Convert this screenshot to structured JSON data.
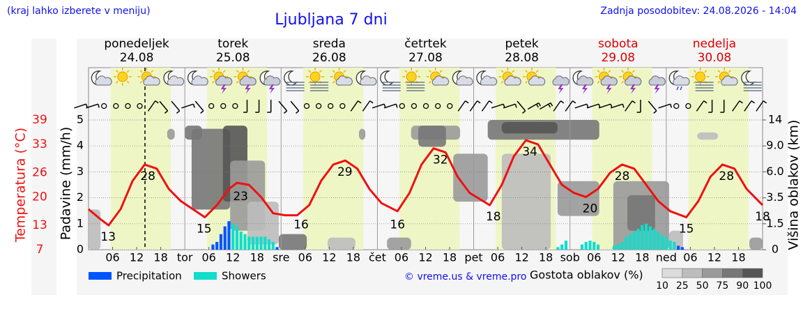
{
  "header": {
    "note": "(kraj lahko izberete v meniju)",
    "title": "Ljubljana 7 dni",
    "updated": "Zadnja posodobitev: 24.08.2026 - 14:04"
  },
  "chart_data": {
    "type": "meteogram",
    "days": [
      {
        "name": "ponedeljek",
        "date": "24.08",
        "color": "#000000"
      },
      {
        "name": "torek",
        "date": "25.08",
        "color": "#000000"
      },
      {
        "name": "sreda",
        "date": "26.08",
        "color": "#000000"
      },
      {
        "name": "četrtek",
        "date": "27.08",
        "color": "#000000"
      },
      {
        "name": "petek",
        "date": "28.08",
        "color": "#000000"
      },
      {
        "name": "sobota",
        "date": "29.08",
        "color": "#dd0000"
      },
      {
        "name": "nedelja",
        "date": "30.08",
        "color": "#dd0000"
      }
    ],
    "xlim": [
      0,
      168
    ],
    "xticks": [
      {
        "value": 6,
        "label": "06"
      },
      {
        "value": 12,
        "label": "12"
      },
      {
        "value": 18,
        "label": "18"
      },
      {
        "value": 24,
        "label": "tor"
      },
      {
        "value": 30,
        "label": "06"
      },
      {
        "value": 36,
        "label": "12"
      },
      {
        "value": 42,
        "label": "18"
      },
      {
        "value": 48,
        "label": "sre"
      },
      {
        "value": 54,
        "label": "06"
      },
      {
        "value": 60,
        "label": "12"
      },
      {
        "value": 66,
        "label": "18"
      },
      {
        "value": 72,
        "label": "čet"
      },
      {
        "value": 78,
        "label": "06"
      },
      {
        "value": 84,
        "label": "12"
      },
      {
        "value": 90,
        "label": "18"
      },
      {
        "value": 96,
        "label": "pet"
      },
      {
        "value": 102,
        "label": "06"
      },
      {
        "value": 108,
        "label": "12"
      },
      {
        "value": 114,
        "label": "18"
      },
      {
        "value": 120,
        "label": "sob"
      },
      {
        "value": 126,
        "label": "06"
      },
      {
        "value": 132,
        "label": "12"
      },
      {
        "value": 138,
        "label": "18"
      },
      {
        "value": 144,
        "label": "ned"
      },
      {
        "value": 150,
        "label": "06"
      },
      {
        "value": 156,
        "label": "12"
      },
      {
        "value": 162,
        "label": "18"
      }
    ],
    "daylight": [
      5.5,
      20.5
    ],
    "now": 14.07,
    "ylabel": "Padavine (mm/h)",
    "ylim": [
      0,
      5
    ],
    "yticks": [
      0,
      1,
      2,
      3,
      4,
      5
    ],
    "grid": true,
    "y2label": "Višina oblakov (km)",
    "y2lim": [
      0,
      14
    ],
    "y2ticks": [
      0,
      1.5,
      3.5,
      {
        "value": 6,
        "label": "6.0"
      },
      {
        "value": 9,
        "label": "9.0"
      },
      14
    ],
    "temperature": {
      "label": "Temperatura (°C)",
      "color": "#ee1111",
      "lim": [
        7,
        39
      ],
      "ticks": [
        7,
        13,
        20,
        26,
        33,
        39
      ],
      "x": [
        0,
        3,
        5,
        8,
        11,
        14,
        17,
        20,
        23,
        26,
        29,
        32,
        35,
        37,
        40,
        43,
        46,
        49,
        52,
        55,
        58,
        61,
        64,
        67,
        70,
        73,
        77,
        80,
        83,
        86,
        89,
        92,
        95,
        100,
        103,
        106,
        109,
        112,
        115,
        118,
        121,
        124,
        127,
        130,
        133,
        136,
        139,
        142,
        145,
        149,
        152,
        155,
        158,
        161,
        164,
        168
      ],
      "values": [
        17,
        14.5,
        13,
        17,
        24,
        28,
        27,
        22,
        19,
        17,
        15,
        18,
        22,
        23.5,
        23,
        20,
        16,
        15.5,
        15.5,
        18,
        24,
        28,
        29,
        27,
        22,
        18.5,
        16.5,
        21,
        28,
        32,
        31,
        25,
        21,
        18,
        23,
        30,
        34,
        33,
        28,
        23,
        21,
        20,
        22,
        26,
        28,
        27,
        23,
        19,
        16.5,
        15,
        19,
        25,
        28,
        27,
        22,
        18
      ],
      "extremes": {
        "x": [
          4.9,
          14.8,
          28.8,
          37.9,
          53,
          63.9,
          77,
          87.7,
          100.9,
          110,
          125,
          133,
          149,
          159,
          168
        ],
        "values": [
          13,
          28,
          15,
          23,
          16,
          29,
          16,
          32,
          18,
          34,
          20,
          28,
          15,
          28,
          18
        ]
      }
    },
    "series": [
      {
        "name": "Precipitation",
        "color": "#0055ff",
        "x": [
          31,
          32,
          33,
          34,
          35,
          47,
          147,
          148
        ],
        "values": [
          0.2,
          0.3,
          0.6,
          0.9,
          1.1,
          0.1,
          0.15,
          0.1
        ]
      },
      {
        "name": "Showers",
        "color": "#11ddcc",
        "x": [
          36,
          37,
          38,
          39,
          40,
          41,
          42,
          43,
          44,
          45,
          46,
          117,
          118,
          119,
          123,
          124,
          125,
          126,
          127,
          131,
          132,
          133,
          134,
          135,
          136,
          137,
          138,
          139,
          140,
          141,
          142,
          143,
          144,
          145,
          146
        ],
        "values": [
          1.0,
          0.9,
          0.7,
          0.6,
          0.5,
          0.5,
          0.5,
          0.5,
          0.5,
          0.4,
          0.3,
          0.1,
          0.2,
          0.35,
          0.2,
          0.3,
          0.35,
          0.3,
          0.2,
          0.15,
          0.2,
          0.3,
          0.5,
          0.6,
          0.7,
          0.8,
          0.95,
          1.0,
          0.9,
          0.8,
          0.7,
          0.55,
          0.5,
          0.35,
          0.3
        ]
      }
    ],
    "cloud_density": {
      "label": "Gostota oblakov (%)",
      "levels": [
        10,
        25,
        50,
        75,
        90,
        100
      ],
      "colors": [
        "#dcdcdc",
        "#bdbdbd",
        "#9a9a9a",
        "#777777",
        "#555555"
      ],
      "cells": [
        [
          0,
          3,
          0,
          2.6,
          25
        ],
        [
          19.6,
          21.5,
          10.2,
          12.3,
          50
        ],
        [
          24,
          28.3,
          10.2,
          12.9,
          75
        ],
        [
          25.7,
          35.3,
          2.6,
          12.3,
          75
        ],
        [
          33.5,
          39.6,
          3.2,
          12.9,
          90
        ],
        [
          35.3,
          44,
          1.1,
          7.3,
          50
        ],
        [
          39.6,
          47.4,
          0.3,
          3.2,
          25
        ],
        [
          47.4,
          54.4,
          0,
          0.9,
          75
        ],
        [
          59.6,
          66.5,
          0,
          0.7,
          25
        ],
        [
          67.4,
          69,
          10.2,
          12.3,
          50
        ],
        [
          74.4,
          80.4,
          0,
          0.7,
          50
        ],
        [
          80.4,
          92.6,
          10.2,
          12.9,
          50
        ],
        [
          82.2,
          89.1,
          8.9,
          12.9,
          75
        ],
        [
          90.9,
          99.5,
          3.2,
          8.1,
          50
        ],
        [
          99.5,
          127.3,
          10.2,
          14,
          75
        ],
        [
          103,
          116.9,
          11.4,
          13.6,
          90
        ],
        [
          103,
          115.2,
          0,
          8.1,
          25
        ],
        [
          116.9,
          127.3,
          2.1,
          5.1,
          50
        ],
        [
          130.8,
          144.7,
          0,
          5.1,
          50
        ],
        [
          134.3,
          141.2,
          1.1,
          3.75,
          75
        ],
        [
          144.7,
          148.2,
          0,
          1.1,
          25
        ],
        [
          151.7,
          156.9,
          10.2,
          11.6,
          25
        ],
        [
          164.7,
          168,
          0,
          0.7,
          50
        ]
      ]
    },
    "credit": "© vreme.us & vreme.pro"
  }
}
